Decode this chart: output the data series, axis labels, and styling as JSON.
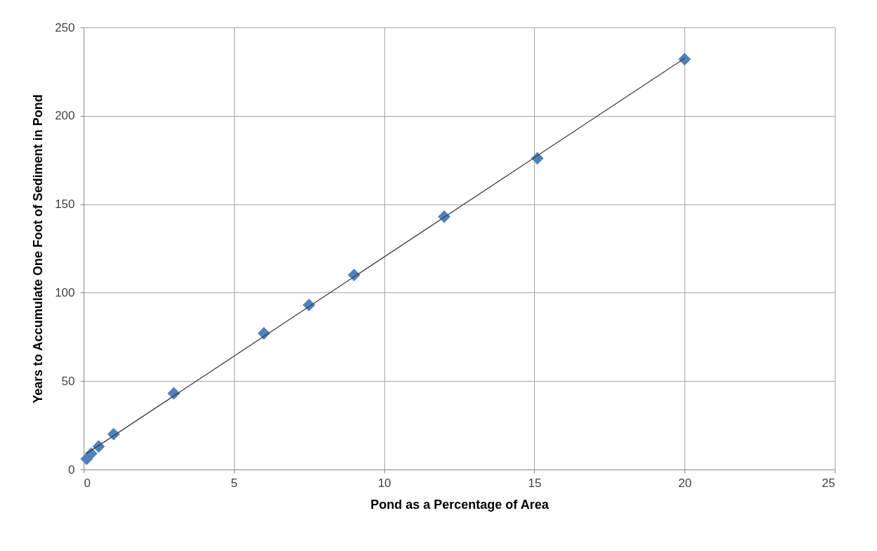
{
  "chart_data": {
    "type": "scatter",
    "xlabel": "Pond as a Percentage of Area",
    "ylabel": "Years to Accumulate One Foot of Sediment in Pond",
    "xlim": [
      0,
      25
    ],
    "xticks": [
      0,
      5,
      10,
      15,
      20,
      25
    ],
    "ylim": [
      0,
      250
    ],
    "yticks": [
      0,
      50,
      100,
      150,
      200,
      250
    ],
    "grid": true,
    "marker": "diamond",
    "series": [
      {
        "color": "#4f81bd",
        "x": [
          0.1,
          0.25,
          0.5,
          1,
          3,
          6,
          7.5,
          9,
          12,
          15.1,
          20
        ],
        "values": [
          6,
          9,
          13,
          20,
          43,
          77,
          93,
          110,
          143,
          176,
          232
        ]
      },
      {
        "type": "line",
        "color": "#404040",
        "marker": "none",
        "line_style": "solid",
        "x": [
          0.1,
          20
        ],
        "values": [
          9,
          232.5
        ]
      }
    ]
  }
}
